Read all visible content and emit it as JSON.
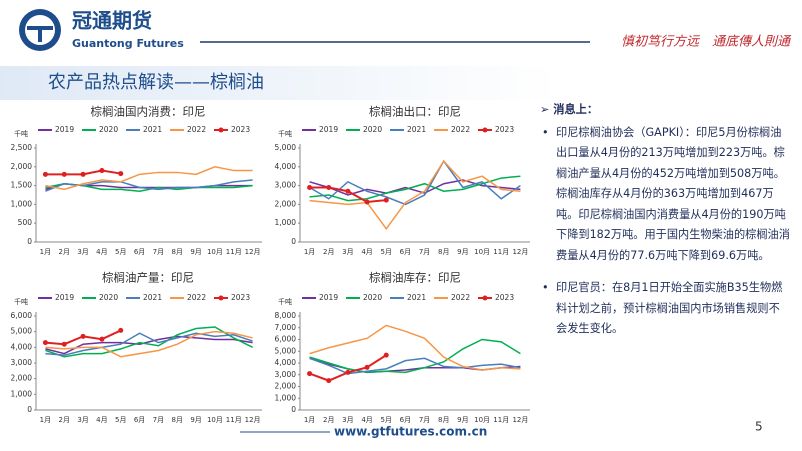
{
  "header": {
    "company": "冠通期货",
    "company_en": "Guantong Futures",
    "slogan": "慎初笃行方远　通底傳人則通",
    "title": "农产品热点解读——棕榈油"
  },
  "chart_data": [
    {
      "type": "line",
      "title": "棕榈油国内消费：印尼",
      "y_label": "千吨",
      "categories": [
        "1月",
        "2月",
        "3月",
        "4月",
        "5月",
        "6月",
        "7月",
        "8月",
        "9月",
        "10月",
        "11月",
        "12月"
      ],
      "series": [
        {
          "name": "2019",
          "color": "#7030a0",
          "values": [
            1400,
            1550,
            1500,
            1500,
            1450,
            1450,
            1450,
            1450,
            1450,
            1500,
            1500,
            1500
          ]
        },
        {
          "name": "2020",
          "color": "#00b050",
          "values": [
            1450,
            1550,
            1500,
            1400,
            1400,
            1350,
            1450,
            1400,
            1450,
            1450,
            1450,
            1500
          ]
        },
        {
          "name": "2021",
          "color": "#4a7ebb",
          "values": [
            1350,
            1550,
            1500,
            1600,
            1600,
            1450,
            1400,
            1450,
            1450,
            1500,
            1600,
            1650
          ]
        },
        {
          "name": "2022",
          "color": "#f79646",
          "values": [
            1500,
            1400,
            1550,
            1650,
            1600,
            1800,
            1850,
            1850,
            1800,
            2000,
            1900,
            1900
          ]
        },
        {
          "name": "2023",
          "color": "#e02020",
          "marker": true,
          "values": [
            1800,
            1800,
            1800,
            1900,
            1820,
            null,
            null,
            null,
            null,
            null,
            null,
            null
          ]
        }
      ],
      "ylim": [
        0,
        2500
      ],
      "yticks": [
        0,
        500,
        {
          "value": 1000,
          "label": "1,000"
        },
        {
          "value": 1500,
          "label": "1,500"
        },
        {
          "value": 2000,
          "label": "2,000"
        },
        {
          "value": 2500,
          "label": "2,500"
        }
      ]
    },
    {
      "type": "line",
      "title": "棕榈油出口：印尼",
      "y_label": "千吨",
      "categories": [
        "1月",
        "2月",
        "3月",
        "4月",
        "5月",
        "6月",
        "7月",
        "8月",
        "9月",
        "10月",
        "11月",
        "12月"
      ],
      "series": [
        {
          "name": "2019",
          "color": "#7030a0",
          "values": [
            3200,
            2900,
            2500,
            2800,
            2600,
            2900,
            2600,
            3100,
            3300,
            3000,
            2900,
            2800
          ]
        },
        {
          "name": "2020",
          "color": "#00b050",
          "values": [
            2400,
            2500,
            2200,
            2300,
            2600,
            2800,
            3100,
            2700,
            2800,
            3100,
            3400,
            3500
          ]
        },
        {
          "name": "2021",
          "color": "#4a7ebb",
          "values": [
            2900,
            2300,
            3200,
            2700,
            2400,
            2000,
            2500,
            4300,
            2900,
            3200,
            2300,
            3000
          ]
        },
        {
          "name": "2022",
          "color": "#f79646",
          "values": [
            2200,
            2100,
            2000,
            2100,
            700,
            2100,
            2700,
            4300,
            3200,
            3500,
            2800,
            2700
          ]
        },
        {
          "name": "2023",
          "color": "#e02020",
          "marker": true,
          "values": [
            2900,
            2900,
            2700,
            2130,
            2230,
            null,
            null,
            null,
            null,
            null,
            null,
            null
          ]
        }
      ],
      "ylim": [
        0,
        5000
      ],
      "yticks": [
        0,
        {
          "value": 1000,
          "label": "1,000"
        },
        {
          "value": 2000,
          "label": "2,000"
        },
        {
          "value": 3000,
          "label": "3,000"
        },
        {
          "value": 4000,
          "label": "4,000"
        },
        {
          "value": 5000,
          "label": "5,000"
        }
      ]
    },
    {
      "type": "line",
      "title": "棕榈油产量：印尼",
      "y_label": "千吨",
      "categories": [
        "1月",
        "2月",
        "3月",
        "4月",
        "5月",
        "6月",
        "7月",
        "8月",
        "9月",
        "10月",
        "11月",
        "12月"
      ],
      "series": [
        {
          "name": "2019",
          "color": "#7030a0",
          "values": [
            3900,
            3600,
            4200,
            4300,
            4300,
            4200,
            4500,
            4700,
            4600,
            4500,
            4500,
            4300
          ]
        },
        {
          "name": "2020",
          "color": "#00b050",
          "values": [
            3800,
            3400,
            3600,
            3600,
            3900,
            4300,
            4100,
            4800,
            5200,
            5300,
            4600,
            4000
          ]
        },
        {
          "name": "2021",
          "color": "#4a7ebb",
          "values": [
            3600,
            3500,
            3800,
            4000,
            4200,
            4900,
            4300,
            4600,
            4900,
            4700,
            4800,
            4400
          ]
        },
        {
          "name": "2022",
          "color": "#f79646",
          "values": [
            4000,
            3900,
            4000,
            4000,
            3400,
            3600,
            3800,
            4200,
            4800,
            5000,
            4900,
            4600
          ]
        },
        {
          "name": "2023",
          "color": "#e02020",
          "marker": true,
          "values": [
            4300,
            4200,
            4700,
            4520,
            5080,
            null,
            null,
            null,
            null,
            null,
            null,
            null
          ]
        }
      ],
      "ylim": [
        0,
        6000
      ],
      "yticks": [
        0,
        {
          "value": 1000,
          "label": "1,000"
        },
        {
          "value": 2000,
          "label": "2,000"
        },
        {
          "value": 3000,
          "label": "3,000"
        },
        {
          "value": 4000,
          "label": "4,000"
        },
        {
          "value": 5000,
          "label": "5,000"
        },
        {
          "value": 6000,
          "label": "6,000"
        }
      ]
    },
    {
      "type": "line",
      "title": "棕榈油库存：印尼",
      "y_label": "千吨",
      "categories": [
        "1月",
        "2月",
        "3月",
        "4月",
        "5月",
        "6月",
        "7月",
        "8月",
        "9月",
        "10月",
        "11月",
        "12月"
      ],
      "series": [
        {
          "name": "2019",
          "color": "#7030a0",
          "values": [
            4400,
            3900,
            3500,
            3200,
            3300,
            3400,
            3600,
            3600,
            3600,
            3400,
            3600,
            3700
          ]
        },
        {
          "name": "2020",
          "color": "#00b050",
          "values": [
            4500,
            4000,
            3500,
            3200,
            3300,
            3200,
            3600,
            4100,
            5200,
            6000,
            5800,
            4800
          ]
        },
        {
          "name": "2021",
          "color": "#4a7ebb",
          "values": [
            4400,
            3800,
            3100,
            3300,
            3500,
            4200,
            4400,
            3700,
            3600,
            3800,
            3900,
            3600
          ]
        },
        {
          "name": "2022",
          "color": "#f79646",
          "values": [
            4800,
            5300,
            5700,
            6100,
            7200,
            6700,
            6100,
            4500,
            3700,
            3400,
            3600,
            3500
          ]
        },
        {
          "name": "2023",
          "color": "#e02020",
          "marker": true,
          "values": [
            3100,
            2500,
            3200,
            3630,
            4670,
            null,
            null,
            null,
            null,
            null,
            null,
            null
          ]
        }
      ],
      "ylim": [
        0,
        8000
      ],
      "yticks": [
        0,
        {
          "value": 1000,
          "label": "1,000"
        },
        {
          "value": 2000,
          "label": "2,000"
        },
        {
          "value": 3000,
          "label": "3,000"
        },
        {
          "value": 4000,
          "label": "4,000"
        },
        {
          "value": 5000,
          "label": "5,000"
        },
        {
          "value": 6000,
          "label": "6,000"
        },
        {
          "value": 7000,
          "label": "7,000"
        },
        {
          "value": 8000,
          "label": "8,000"
        }
      ]
    }
  ],
  "news": {
    "heading": "消息上：",
    "items": [
      "印尼棕榈油协会（GAPKI）：印尼5月份棕榈油出口量从4月份的213万吨增加到223万吨。棕榈油产量从4月份的452万吨增加到508万吨。棕榈油库存从4月份的363万吨增加到467万吨。印尼棕榈油国内消费量从4月份的190万吨下降到182万吨。用于国内生物柴油的棕榈油消费量从4月份的77.6万吨下降到69.6万吨。",
      "印尼官员：在8月1日开始全面实施B35生物燃料计划之前，预计棕榈油国内市场销售规则不会发生变化。"
    ]
  },
  "footer": {
    "url": "www.gtfutures.com.cn",
    "page": "5"
  }
}
